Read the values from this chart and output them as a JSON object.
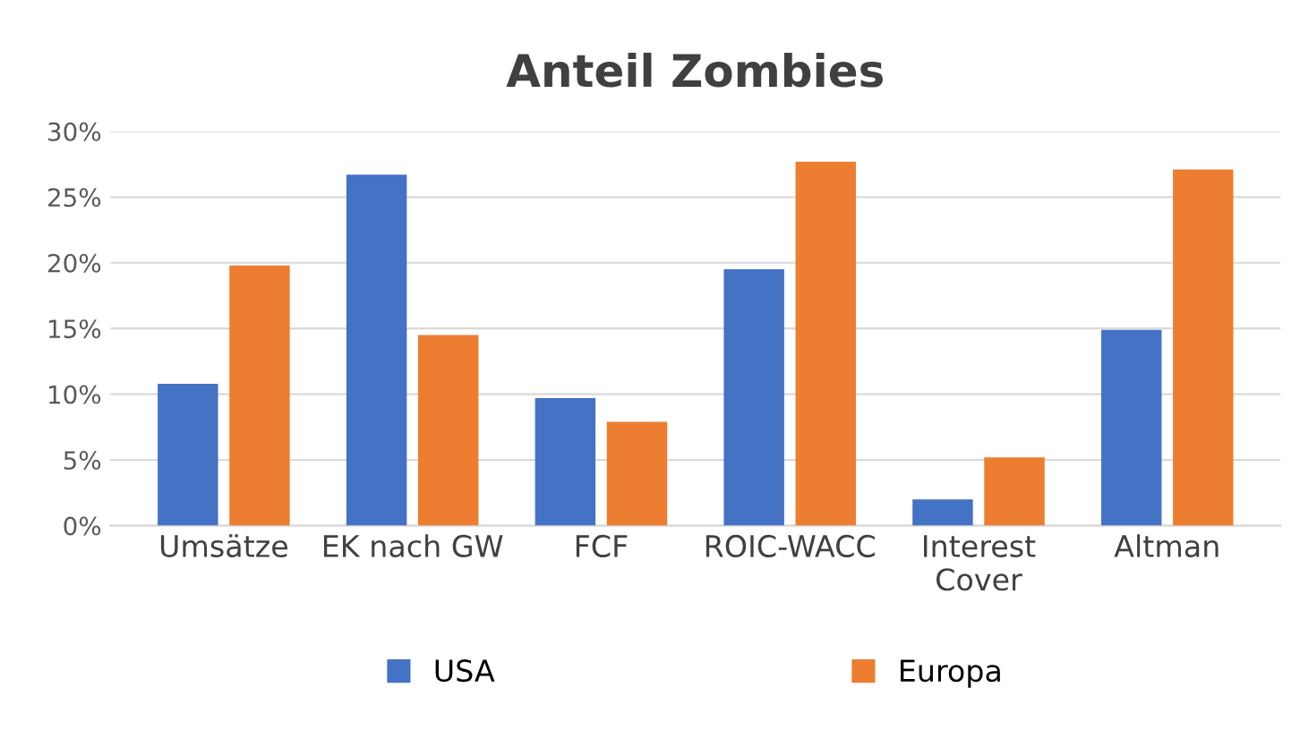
{
  "chart_data": {
    "type": "bar",
    "title": "Anteil Zombies",
    "categories": [
      "Umsätze",
      "EK nach GW",
      "FCF",
      "ROIC-WACC",
      "Interest\nCover",
      "Altman"
    ],
    "series": [
      {
        "name": "USA",
        "color": "#4472c4",
        "values": [
          10.8,
          26.7,
          9.7,
          19.5,
          2.0,
          14.9
        ]
      },
      {
        "name": "Europa",
        "color": "#ed7d31",
        "values": [
          19.8,
          14.5,
          7.9,
          27.7,
          5.2,
          27.1
        ]
      }
    ],
    "ylim": [
      0,
      30
    ],
    "yticks": [
      {
        "value": 0,
        "label": "0%"
      },
      {
        "value": 5,
        "label": "5%"
      },
      {
        "value": 10,
        "label": "10%"
      },
      {
        "value": 15,
        "label": "15%"
      },
      {
        "value": 20,
        "label": "20%"
      },
      {
        "value": 25,
        "label": "25%"
      },
      {
        "value": 30,
        "label": "30%"
      }
    ],
    "grid": "y",
    "legend": "bottom"
  }
}
